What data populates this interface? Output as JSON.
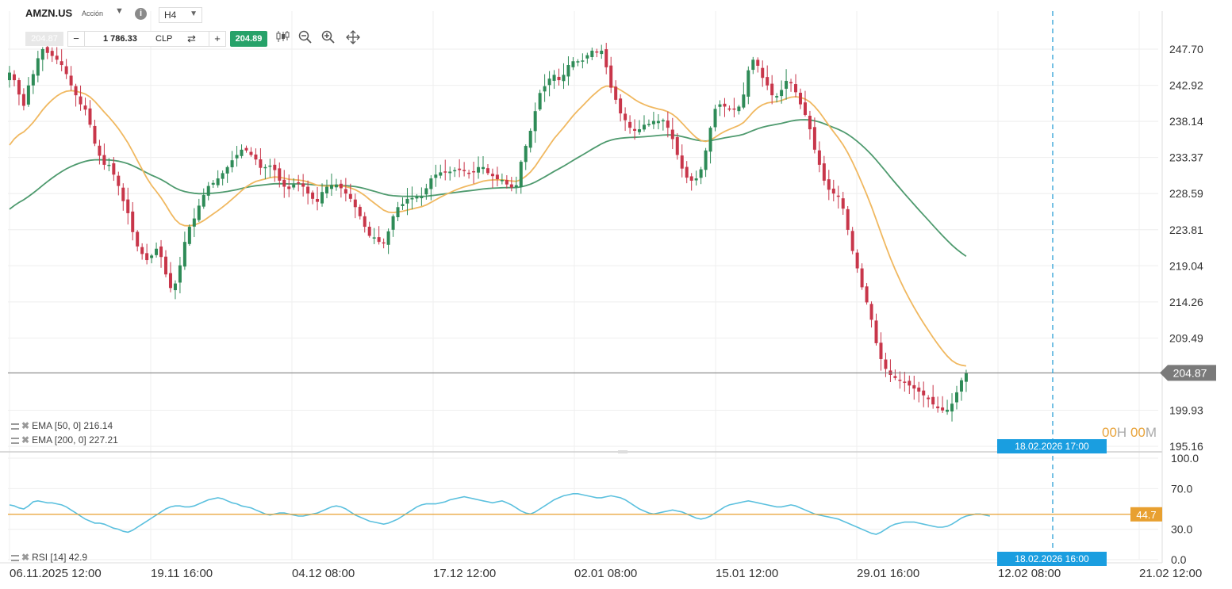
{
  "header": {
    "symbol": "AMZN.US",
    "type": "Acción",
    "timeframe": "H4",
    "bid": "204.87",
    "quantity": "1 786.33",
    "currency": "CLP",
    "ask": "204.89"
  },
  "indicators": {
    "ema50_label": "EMA [50, 0] 216.14",
    "ema200_label": "EMA [200, 0] 227.21",
    "rsi_label": "RSI [14] 42.9"
  },
  "countdown": {
    "h": "00",
    "h_unit": "H",
    "m": "00",
    "m_unit": "M"
  },
  "crosshair": {
    "price_date_label": "18.02.2026 17:00",
    "rsi_date_label": "18.02.2026 16:00"
  },
  "colors": {
    "up": "#2e8b57",
    "down": "#c8364a",
    "ema50": "#f0b860",
    "ema200": "#4e9a6e",
    "rsi": "#5bc0de",
    "rsi_level": "#e8a030",
    "crosshair": "#2a9fd6"
  },
  "chart_data": [
    {
      "type": "candlestick",
      "title": "AMZN.US",
      "current_price": 204.87,
      "current_price_label": "204.87",
      "ylim": [
        195.16,
        247.7
      ],
      "y_ticks": [
        "247.70",
        "242.92",
        "238.14",
        "233.37",
        "228.59",
        "223.81",
        "219.04",
        "214.26",
        "209.49",
        "204.87",
        "199.93",
        "195.16"
      ],
      "x_ticks": [
        "06.11.2025 12:00",
        "19.11 16:00",
        "04.12 08:00",
        "17.12 12:00",
        "02.01 08:00",
        "15.01 12:00",
        "29.01 16:00",
        "12.02 08:00",
        "21.02 12:00"
      ],
      "ohlc_close": [
        244.6,
        243.6,
        241.7,
        240.2,
        242.9,
        244.4,
        246.5,
        247.7,
        247.2,
        246.8,
        246.3,
        245.6,
        244.4,
        242.9,
        241.6,
        240.4,
        239.7,
        237.7,
        235.2,
        233.6,
        232.4,
        232.4,
        231.1,
        229.6,
        227.6,
        226.0,
        223.5,
        221.6,
        220.6,
        219.8,
        220.4,
        221.3,
        220.2,
        217.9,
        216.1,
        216.7,
        219.1,
        222.2,
        224.2,
        225.3,
        227.0,
        228.4,
        229.6,
        230.0,
        230.6,
        231.3,
        232.1,
        233.0,
        233.7,
        234.4,
        234.3,
        233.7,
        233.1,
        232.0,
        232.1,
        232.3,
        231.7,
        230.3,
        229.5,
        229.2,
        229.8,
        230.0,
        229.5,
        228.6,
        227.9,
        227.5,
        228.8,
        229.5,
        229.7,
        229.8,
        229.3,
        228.6,
        227.9,
        226.8,
        225.6,
        224.2,
        223.0,
        222.8,
        222.2,
        222.1,
        223.6,
        225.6,
        226.8,
        227.2,
        227.9,
        228.0,
        228.2,
        228.2,
        229.3,
        230.6,
        231.1,
        231.4,
        231.4,
        231.5,
        231.7,
        231.7,
        231.6,
        231.3,
        231.4,
        232.1,
        232.1,
        231.3,
        230.9,
        230.5,
        230.4,
        229.8,
        229.4,
        229.7,
        232.8,
        234.9,
        236.9,
        239.5,
        241.9,
        242.8,
        243.8,
        244.3,
        243.6,
        244.3,
        245.6,
        246.1,
        246.1,
        246.2,
        246.9,
        247.5,
        247.3,
        247.5,
        245.3,
        242.6,
        241.0,
        239.2,
        238.3,
        237.3,
        236.9,
        237.1,
        237.7,
        237.8,
        238.2,
        238.2,
        238.3,
        237.3,
        235.8,
        233.7,
        231.9,
        230.7,
        230.3,
        230.6,
        231.8,
        234.3,
        237.3,
        239.8,
        240.4,
        240.1,
        239.7,
        239.8,
        240.1,
        241.7,
        244.9,
        246.3,
        245.5,
        243.9,
        242.9,
        241.6,
        241.5,
        242.3,
        243.5,
        243.2,
        242.0,
        240.4,
        239.0,
        237.1,
        234.4,
        232.4,
        230.3,
        229.1,
        228.6,
        228.2,
        226.6,
        223.8,
        221.0,
        218.7,
        216.2,
        214.2,
        211.9,
        208.8,
        206.7,
        205.4,
        204.6,
        204.2,
        203.9,
        203.6,
        203.2,
        202.8,
        202.4,
        201.9,
        201.4,
        200.7,
        200.2,
        199.9,
        200.0,
        200.8,
        202.3,
        203.9,
        204.9
      ]
    },
    {
      "type": "line",
      "title": "RSI [14]",
      "ylim": [
        0,
        100
      ],
      "y_ticks": [
        "100.0",
        "70.0",
        "30.0",
        "0.0"
      ],
      "level": 44.7,
      "level_label": "44.7",
      "values": [
        54,
        53,
        51,
        50,
        53,
        57,
        58,
        57,
        56,
        56,
        55,
        54,
        52,
        49,
        46,
        43,
        40,
        38,
        36,
        36,
        35,
        33,
        31,
        30,
        28,
        27,
        29,
        32,
        35,
        38,
        41,
        44,
        47,
        50,
        52,
        53,
        53,
        52,
        52,
        53,
        55,
        57,
        59,
        60,
        61,
        60,
        58,
        56,
        55,
        53,
        52,
        51,
        49,
        47,
        45,
        44,
        45,
        46,
        46,
        45,
        44,
        43,
        43,
        44,
        45,
        46,
        48,
        50,
        52,
        53,
        52,
        50,
        47,
        44,
        42,
        40,
        38,
        37,
        36,
        35,
        36,
        38,
        40,
        43,
        46,
        49,
        52,
        54,
        55,
        55,
        55,
        56,
        57,
        59,
        60,
        61,
        62,
        61,
        60,
        59,
        58,
        57,
        56,
        57,
        58,
        56,
        54,
        51,
        48,
        46,
        45,
        47,
        50,
        53,
        56,
        59,
        61,
        63,
        64,
        65,
        65,
        64,
        63,
        62,
        61,
        61,
        62,
        63,
        62,
        61,
        59,
        56,
        53,
        50,
        48,
        46,
        45,
        46,
        47,
        48,
        49,
        48,
        47,
        45,
        43,
        41,
        40,
        41,
        43,
        46,
        49,
        52,
        54,
        55,
        56,
        57,
        58,
        57,
        56,
        55,
        54,
        53,
        52,
        52,
        53,
        54,
        53,
        51,
        49,
        47,
        45,
        44,
        43,
        42,
        41,
        40,
        38,
        36,
        34,
        32,
        30,
        28,
        26,
        25,
        27,
        30,
        33,
        35,
        36,
        37,
        37,
        37,
        36,
        35,
        34,
        33,
        32,
        32,
        33,
        35,
        38,
        41,
        43,
        44,
        45,
        45,
        44,
        43
      ]
    }
  ]
}
